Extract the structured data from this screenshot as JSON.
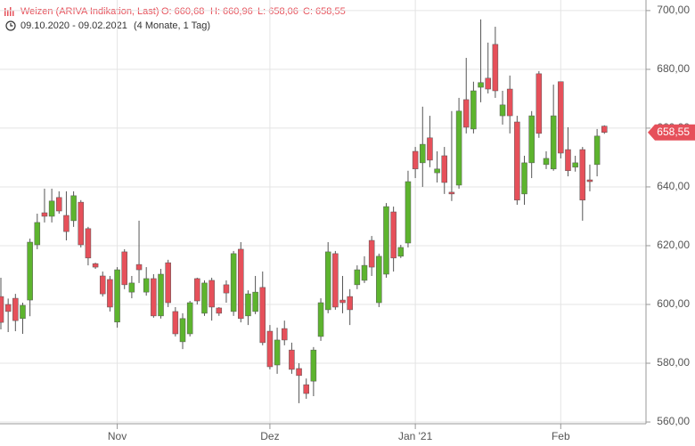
{
  "chart_data": {
    "type": "candlestick",
    "title": "Weizen (ARIVA Indikation, Last)",
    "ohlc_labels": [
      "O: 660,68",
      "H: 660,96",
      "L: 658,06",
      "C: 658,55"
    ],
    "period": "09.10.2020 - 09.02.2021",
    "duration": "(4 Monate, 1 Tag)",
    "last_price_label": "658,55",
    "up_color": "#5db42e",
    "down_color": "#e6505a",
    "grid": true,
    "categories": [
      null,
      null,
      null,
      null,
      null,
      null,
      null,
      null,
      null,
      null,
      null,
      null,
      null,
      null,
      null,
      null,
      "Nov",
      null,
      null,
      null,
      null,
      null,
      null,
      null,
      null,
      null,
      null,
      null,
      null,
      null,
      null,
      null,
      null,
      null,
      null,
      null,
      null,
      "Dez",
      null,
      null,
      null,
      null,
      null,
      null,
      null,
      null,
      null,
      null,
      null,
      null,
      null,
      null,
      null,
      null,
      null,
      null,
      null,
      "Jan '21",
      null,
      null,
      null,
      null,
      null,
      null,
      null,
      null,
      null,
      null,
      null,
      null,
      null,
      null,
      null,
      null,
      null,
      null,
      null,
      "Feb",
      null,
      null,
      null,
      null,
      null,
      null
    ],
    "open": [
      602.7,
      600,
      602.1,
      595.2,
      601.5,
      620.3,
      631.2,
      630,
      636.4,
      630.3,
      628.5,
      634.8,
      625.8,
      613.9,
      609.7,
      608.5,
      594,
      617.9,
      604.2,
      613.6,
      604.2,
      608.8,
      596.1,
      614.2,
      597.6,
      587.3,
      590,
      608.8,
      597,
      608.2,
      598.8,
      606.7,
      597.6,
      618.8,
      596.1,
      597.6,
      605.8,
      590.9,
      579.4,
      591.8,
      584.5,
      578.2,
      572.7,
      573.9,
      589.1,
      598.2,
      617.3,
      601.5,
      602.7,
      606.7,
      608.2,
      621.8,
      600.6,
      610.3,
      631.5,
      616.4,
      620.9,
      652.1,
      648.2,
      656.7,
      644.8,
      650.6,
      638.2,
      640.6,
      669.7,
      659.7,
      673.9,
      677,
      688.5,
      664.2,
      673.3,
      662.1,
      637.6,
      648.2,
      678.5,
      647.6,
      646.1,
      675.8,
      652.7,
      646.7,
      652.7,
      642.4,
      647.6,
      660.68
    ],
    "high": [
      609.1,
      602,
      603.6,
      600.6,
      622.4,
      630.9,
      639.4,
      639.4,
      638.5,
      638.5,
      638.5,
      635.5,
      626.4,
      614.2,
      611.2,
      609.7,
      612.7,
      618.8,
      609.7,
      628.5,
      612.7,
      610.3,
      612.1,
      615.2,
      599.1,
      597,
      601.2,
      609.1,
      608.2,
      609.1,
      599.1,
      608.2,
      618.2,
      621.2,
      604.8,
      609.7,
      611.2,
      593,
      592.1,
      594.5,
      587,
      580,
      574.8,
      585.5,
      602.1,
      621.2,
      618.2,
      609.7,
      605.2,
      613.3,
      616.4,
      623.3,
      617.3,
      634.5,
      633.3,
      620.3,
      645.5,
      653.6,
      667.3,
      664.2,
      652.1,
      653.6,
      665.8,
      670.3,
      683.9,
      675.8,
      697,
      689.1,
      694.5,
      672.7,
      677.9,
      664.2,
      650.6,
      665.8,
      679.4,
      652.1,
      674.8,
      675.8,
      660.3,
      650.6,
      653.6,
      647.6,
      659.7,
      660.96
    ],
    "low": [
      591.5,
      590.6,
      590.9,
      590,
      596,
      618.8,
      627.9,
      627.9,
      630.9,
      621.8,
      626.4,
      619.4,
      613.3,
      612.1,
      602.7,
      597.6,
      592.1,
      605.2,
      602.1,
      607.3,
      603,
      595.5,
      595.2,
      599.1,
      589.1,
      584.8,
      589.1,
      600,
      596.1,
      594.5,
      596.1,
      600.6,
      596.1,
      593.9,
      593,
      596.7,
      586.1,
      577.9,
      576.4,
      586.1,
      576.4,
      566.4,
      567.9,
      568.8,
      587.6,
      597,
      598.2,
      597,
      593,
      605.2,
      607.3,
      609.7,
      599.1,
      609.1,
      611.2,
      615.8,
      619.4,
      643,
      640,
      646.7,
      641.5,
      637.6,
      635.2,
      639.4,
      658.2,
      658.2,
      668.8,
      671.8,
      670.3,
      661.2,
      658.2,
      633.9,
      633.9,
      643,
      656.7,
      646.1,
      645.5,
      649.7,
      643.6,
      645.2,
      628.5,
      638.5,
      643.6,
      658.06
    ],
    "close": [
      593.9,
      597.6,
      594.5,
      599.7,
      621.2,
      627.9,
      630,
      635.2,
      631.8,
      624.8,
      637,
      620.3,
      615.8,
      612.7,
      603.6,
      599.1,
      611.8,
      606.7,
      607.3,
      611.8,
      608.8,
      596.1,
      610.3,
      600.6,
      590,
      595.2,
      600.6,
      601.2,
      607.3,
      599.1,
      597,
      603.9,
      617.3,
      595.2,
      603.6,
      604.2,
      587,
      578.8,
      587.9,
      587.9,
      577.9,
      575.8,
      569.7,
      584.5,
      600.6,
      617.9,
      599.1,
      600.6,
      598.2,
      611.8,
      613.3,
      612.7,
      616.4,
      633.3,
      615.8,
      619.4,
      641.8,
      646.1,
      654.5,
      649.1,
      646.1,
      641.5,
      637.6,
      665.8,
      660.3,
      672.7,
      675.5,
      673.3,
      672.7,
      667.9,
      664.2,
      635.5,
      648.2,
      664.2,
      658.2,
      649.7,
      664.2,
      651.5,
      645.5,
      648.2,
      635.5,
      641.8,
      657.3,
      658.55
    ],
    "ylim": [
      558.8,
      703.6
    ],
    "yticks": [
      {
        "value": 560,
        "label": "560,00"
      },
      {
        "value": 580,
        "label": "580,00"
      },
      {
        "value": 600,
        "label": "600,00"
      },
      {
        "value": 620,
        "label": "620,00"
      },
      {
        "value": 640,
        "label": "640,00"
      },
      {
        "value": 660,
        "label": "660,00"
      },
      {
        "value": 680,
        "label": "680,00"
      },
      {
        "value": 700,
        "label": "700,00"
      }
    ]
  }
}
